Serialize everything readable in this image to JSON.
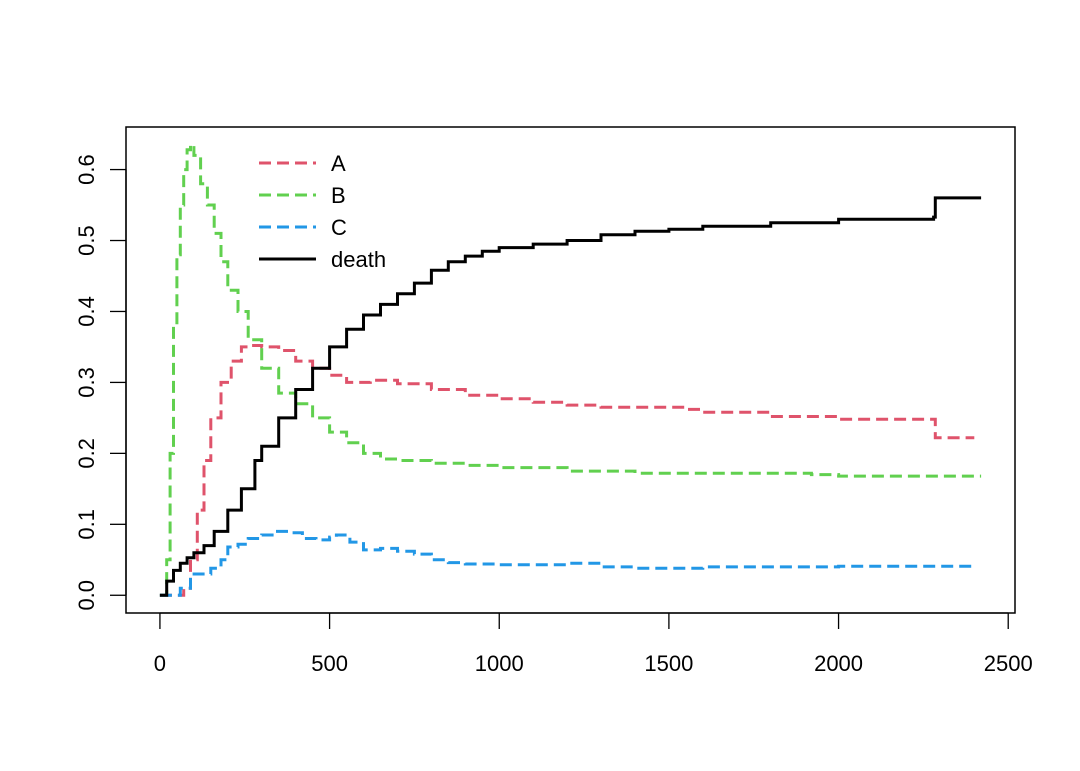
{
  "chart_data": {
    "type": "line",
    "title": "",
    "xlabel": "",
    "ylabel": "",
    "xlim": [
      -100,
      2520
    ],
    "ylim": [
      -0.025,
      0.66
    ],
    "x_ticks": [
      0,
      500,
      1000,
      1500,
      2000,
      2500
    ],
    "x_tick_labels": [
      "0",
      "500",
      "1000",
      "1500",
      "2000",
      "2500"
    ],
    "y_ticks": [
      0.0,
      0.1,
      0.2,
      0.3,
      0.4,
      0.5,
      0.6
    ],
    "y_tick_labels": [
      "0.0",
      "0.1",
      "0.2",
      "0.3",
      "0.4",
      "0.5",
      "0.6"
    ],
    "grid": false,
    "legend": {
      "position": "top-left"
    },
    "series": [
      {
        "name": "A",
        "color": "#DF536B",
        "dash": "dashed",
        "points": [
          [
            0,
            0
          ],
          [
            40,
            0
          ],
          [
            70,
            0.01
          ],
          [
            90,
            0.05
          ],
          [
            110,
            0.12
          ],
          [
            130,
            0.19
          ],
          [
            150,
            0.25
          ],
          [
            180,
            0.3
          ],
          [
            210,
            0.33
          ],
          [
            240,
            0.35
          ],
          [
            260,
            0.352
          ],
          [
            300,
            0.35
          ],
          [
            350,
            0.345
          ],
          [
            400,
            0.33
          ],
          [
            450,
            0.32
          ],
          [
            500,
            0.31
          ],
          [
            550,
            0.3
          ],
          [
            620,
            0.303
          ],
          [
            700,
            0.298
          ],
          [
            800,
            0.29
          ],
          [
            900,
            0.282
          ],
          [
            1000,
            0.277
          ],
          [
            1100,
            0.272
          ],
          [
            1200,
            0.268
          ],
          [
            1300,
            0.265
          ],
          [
            1400,
            0.265
          ],
          [
            1550,
            0.262
          ],
          [
            1600,
            0.258
          ],
          [
            1800,
            0.252
          ],
          [
            2000,
            0.248
          ],
          [
            2280,
            0.248
          ],
          [
            2285,
            0.222
          ],
          [
            2400,
            0.222
          ]
        ]
      },
      {
        "name": "B",
        "color": "#61D04F",
        "dash": "dashed",
        "points": [
          [
            0,
            0
          ],
          [
            20,
            0.05
          ],
          [
            30,
            0.2
          ],
          [
            40,
            0.38
          ],
          [
            50,
            0.48
          ],
          [
            60,
            0.55
          ],
          [
            70,
            0.6
          ],
          [
            80,
            0.628
          ],
          [
            90,
            0.635
          ],
          [
            100,
            0.62
          ],
          [
            120,
            0.58
          ],
          [
            140,
            0.55
          ],
          [
            160,
            0.51
          ],
          [
            180,
            0.47
          ],
          [
            200,
            0.43
          ],
          [
            230,
            0.4
          ],
          [
            260,
            0.36
          ],
          [
            300,
            0.32
          ],
          [
            350,
            0.285
          ],
          [
            400,
            0.27
          ],
          [
            450,
            0.25
          ],
          [
            500,
            0.23
          ],
          [
            550,
            0.215
          ],
          [
            600,
            0.2
          ],
          [
            650,
            0.192
          ],
          [
            700,
            0.19
          ],
          [
            800,
            0.186
          ],
          [
            900,
            0.183
          ],
          [
            1000,
            0.18
          ],
          [
            1200,
            0.175
          ],
          [
            1400,
            0.172
          ],
          [
            1600,
            0.172
          ],
          [
            1800,
            0.172
          ],
          [
            1920,
            0.17
          ],
          [
            2000,
            0.168
          ],
          [
            2200,
            0.168
          ],
          [
            2420,
            0.168
          ]
        ]
      },
      {
        "name": "C",
        "color": "#2297E6",
        "dash": "dashed",
        "points": [
          [
            0,
            0
          ],
          [
            30,
            0
          ],
          [
            60,
            0.01
          ],
          [
            90,
            0.03
          ],
          [
            120,
            0.03
          ],
          [
            150,
            0.038
          ],
          [
            180,
            0.05
          ],
          [
            200,
            0.068
          ],
          [
            230,
            0.072
          ],
          [
            260,
            0.08
          ],
          [
            300,
            0.085
          ],
          [
            340,
            0.09
          ],
          [
            380,
            0.088
          ],
          [
            420,
            0.08
          ],
          [
            460,
            0.078
          ],
          [
            500,
            0.082
          ],
          [
            520,
            0.085
          ],
          [
            560,
            0.075
          ],
          [
            600,
            0.064
          ],
          [
            650,
            0.066
          ],
          [
            700,
            0.062
          ],
          [
            750,
            0.058
          ],
          [
            800,
            0.05
          ],
          [
            850,
            0.046
          ],
          [
            900,
            0.044
          ],
          [
            1000,
            0.043
          ],
          [
            1200,
            0.045
          ],
          [
            1300,
            0.04
          ],
          [
            1400,
            0.038
          ],
          [
            1600,
            0.04
          ],
          [
            1800,
            0.04
          ],
          [
            2000,
            0.041
          ],
          [
            2400,
            0.041
          ]
        ]
      },
      {
        "name": "death",
        "color": "#000000",
        "dash": "solid",
        "points": [
          [
            0,
            0
          ],
          [
            20,
            0.02
          ],
          [
            40,
            0.035
          ],
          [
            60,
            0.045
          ],
          [
            80,
            0.053
          ],
          [
            100,
            0.06
          ],
          [
            130,
            0.07
          ],
          [
            160,
            0.09
          ],
          [
            200,
            0.12
          ],
          [
            240,
            0.15
          ],
          [
            280,
            0.19
          ],
          [
            300,
            0.21
          ],
          [
            350,
            0.25
          ],
          [
            400,
            0.29
          ],
          [
            450,
            0.32
          ],
          [
            500,
            0.35
          ],
          [
            550,
            0.375
          ],
          [
            600,
            0.395
          ],
          [
            650,
            0.41
          ],
          [
            700,
            0.425
          ],
          [
            750,
            0.44
          ],
          [
            800,
            0.458
          ],
          [
            850,
            0.47
          ],
          [
            900,
            0.478
          ],
          [
            950,
            0.485
          ],
          [
            1000,
            0.49
          ],
          [
            1100,
            0.495
          ],
          [
            1200,
            0.5
          ],
          [
            1300,
            0.508
          ],
          [
            1400,
            0.513
          ],
          [
            1500,
            0.516
          ],
          [
            1600,
            0.52
          ],
          [
            1800,
            0.525
          ],
          [
            2000,
            0.53
          ],
          [
            2280,
            0.533
          ],
          [
            2285,
            0.56
          ],
          [
            2420,
            0.56
          ]
        ]
      }
    ]
  }
}
